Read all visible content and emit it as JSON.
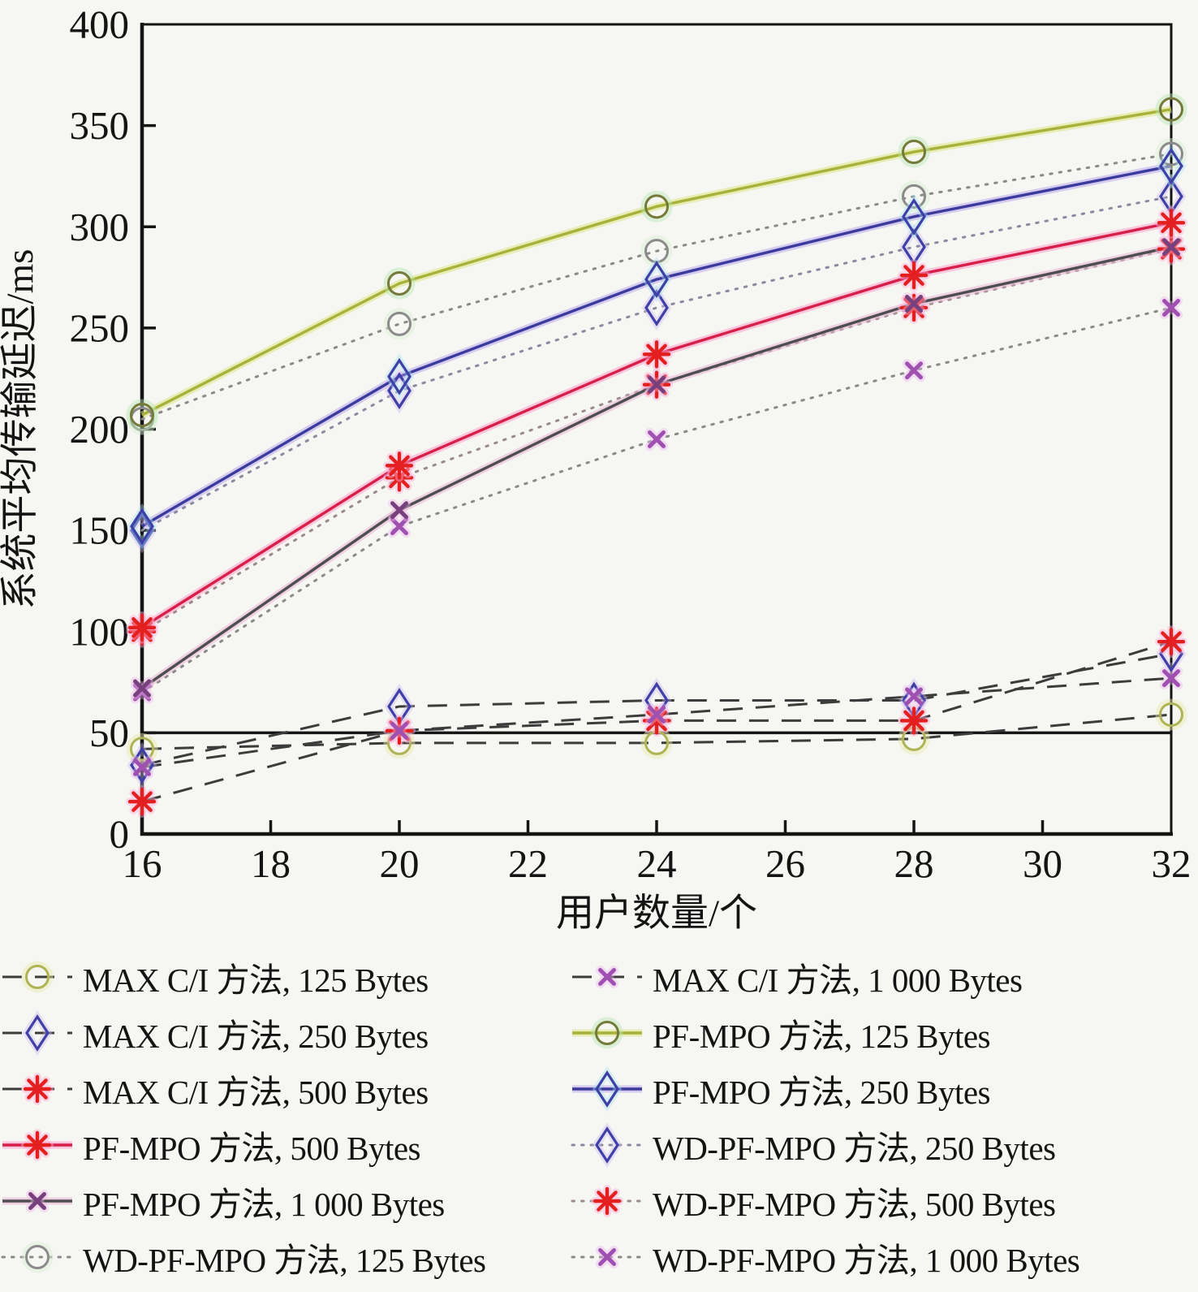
{
  "page": {
    "background": "#f6f6f3",
    "text_color": "#141414"
  },
  "chart_data": {
    "type": "line",
    "title": "",
    "xlabel": "用户数量/个",
    "ylabel": "系统平均传输延迟/ms",
    "x": [
      16,
      20,
      24,
      28,
      32
    ],
    "xlim": [
      16,
      32
    ],
    "ylim": [
      0,
      400
    ],
    "x_ticks": [
      "16",
      "18",
      "20",
      "22",
      "24",
      "26",
      "28",
      "30",
      "32"
    ],
    "y_ticks": [
      "0",
      "50",
      "100",
      "150",
      "200",
      "250",
      "300",
      "350",
      "400"
    ],
    "grid": "off",
    "reference_line_y": 50,
    "legend_position": "below",
    "series": [
      {
        "name": "MAX C/I 方法, 125 Bytes",
        "values": [
          42,
          45,
          45,
          47,
          59
        ],
        "line": "dashed",
        "line_color": "#3c3c3c",
        "marker": "circle",
        "marker_color": "#aeb455",
        "halo": "#e9ecaa"
      },
      {
        "name": "MAX C/I 方法, 250 Bytes",
        "values": [
          34,
          63,
          66,
          66,
          89
        ],
        "line": "dashed",
        "line_color": "#3c3c3c",
        "marker": "diamond",
        "marker_color": "#3f3fa6",
        "halo": "#cdbcef"
      },
      {
        "name": "MAX C/I 方法, 500 Bytes",
        "values": [
          16,
          51,
          56,
          56,
          95
        ],
        "line": "dashed",
        "line_color": "#3c3c3c",
        "marker": "asterisk",
        "marker_color": "#e3201f",
        "halo": "#ffadd6"
      },
      {
        "name": "PF-MPO 方法, 500 Bytes",
        "values": [
          102,
          182,
          237,
          276,
          302
        ],
        "line": "solid",
        "line_color": "#d62049",
        "line_glow": "#ff9cc8",
        "marker": "asterisk",
        "marker_color": "#e3201f",
        "halo": "#ffadd6"
      },
      {
        "name": "PF-MPO 方法, 1 000 Bytes",
        "values": [
          72,
          160,
          222,
          262,
          290
        ],
        "line": "solid",
        "line_color": "#4e4e52",
        "line_glow": "#eab2d4",
        "marker": "xmark",
        "marker_color": "#77417e",
        "halo": "#f0b6e4"
      },
      {
        "name": "WD-PF-MPO 方法, 125 Bytes",
        "values": [
          205,
          252,
          288,
          315,
          336
        ],
        "line": "dotted",
        "line_color": "#8a8a8a",
        "marker": "circle",
        "marker_color": "#8b8b8b",
        "halo": "#d9f0d2"
      },
      {
        "name": "MAX C/I 方法, 1 000 Bytes",
        "values": [
          33,
          51,
          59,
          68,
          77
        ],
        "line": "dashed",
        "line_color": "#3c3c3c",
        "marker": "xmark",
        "marker_color": "#a050b0",
        "halo": "#eab6ee"
      },
      {
        "name": "PF-MPO 方法, 125 Bytes",
        "values": [
          207,
          272,
          310,
          337,
          358
        ],
        "line": "solid",
        "line_color": "#a8b23a",
        "line_glow": "#dde584",
        "marker": "circle",
        "marker_color": "#75793a",
        "halo": "#b9e8b4"
      },
      {
        "name": "PF-MPO 方法, 250 Bytes",
        "values": [
          152,
          226,
          274,
          305,
          330
        ],
        "line": "solid",
        "line_color": "#3b3b9d",
        "line_glow": "#b9a8ea",
        "marker": "diamond",
        "marker_color": "#3f3fa6",
        "halo": "#a8e4f0"
      },
      {
        "name": "WD-PF-MPO 方法, 250 Bytes",
        "values": [
          150,
          219,
          260,
          290,
          315
        ],
        "line": "dotted",
        "line_color": "#8a8aa0",
        "marker": "diamond",
        "marker_color": "#3f3fa6",
        "halo": "#cdbcef"
      },
      {
        "name": "WD-PF-MPO 方法, 500 Bytes",
        "values": [
          100,
          176,
          222,
          260,
          289
        ],
        "line": "dotted",
        "line_color": "#9a8a8a",
        "marker": "asterisk",
        "marker_color": "#e3201f",
        "halo": "#ffadd6"
      },
      {
        "name": "WD-PF-MPO 方法, 1 000 Bytes",
        "values": [
          70,
          152,
          195,
          229,
          260
        ],
        "line": "dotted",
        "line_color": "#8a8a8a",
        "marker": "xmark",
        "marker_color": "#a050b0",
        "halo": "#eab6ee"
      }
    ],
    "legend_columns": [
      [
        0,
        1,
        2,
        3,
        4,
        5
      ],
      [
        6,
        7,
        8,
        9,
        10,
        11
      ]
    ],
    "draw_order": [
      5,
      9,
      10,
      11,
      0,
      1,
      2,
      6,
      7,
      8,
      3,
      4
    ]
  }
}
